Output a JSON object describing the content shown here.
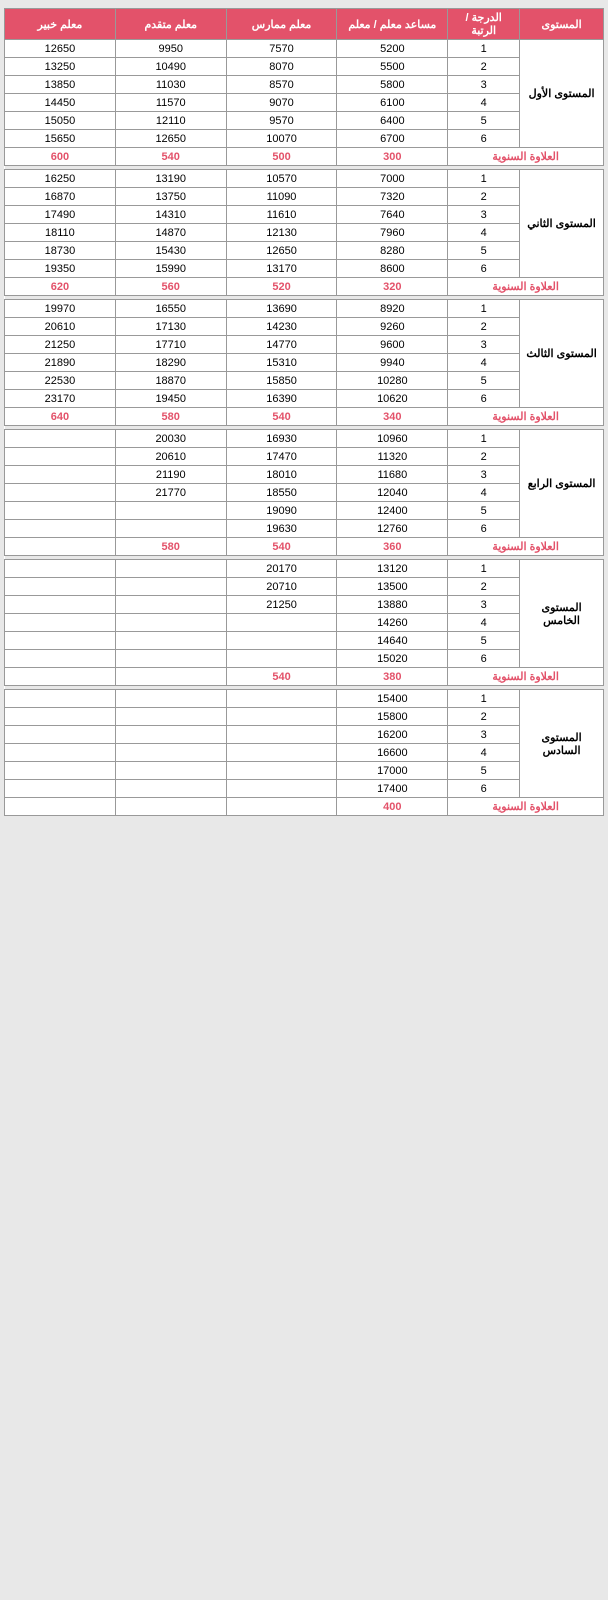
{
  "colors": {
    "header_bg": "#e3526a",
    "header_fg": "#ffffff",
    "accent": "#e3526a",
    "arrow": "#2fd39a",
    "border": "#999999",
    "bg": "#e8e8e8"
  },
  "headers": {
    "level": "المستوى",
    "grade": "الدرجة / الرتبة",
    "assistant": "مساعد معلم / معلم",
    "practitioner": "معلم ممارس",
    "advanced": "معلم متقدم",
    "expert": "معلم خبير"
  },
  "allowance_label": "العلاوة السنوية",
  "levels": [
    {
      "name": "المستوى الأول",
      "rows": [
        {
          "g": "1",
          "a": "5200",
          "p": "7570",
          "v": "9950",
          "x": "12650"
        },
        {
          "g": "2",
          "a": "5500",
          "p": "8070",
          "v": "10490",
          "x": "13250"
        },
        {
          "g": "3",
          "a": "5800",
          "p": "8570",
          "v": "11030",
          "x": "13850"
        },
        {
          "g": "4",
          "a": "6100",
          "p": "9070",
          "v": "11570",
          "x": "14450"
        },
        {
          "g": "5",
          "a": "6400",
          "p": "9570",
          "v": "12110",
          "x": "15050"
        },
        {
          "g": "6",
          "a": "6700",
          "p": "10070",
          "v": "12650",
          "x": "15650"
        }
      ],
      "allowance": {
        "a": "300",
        "p": "500",
        "v": "540",
        "x": "600"
      }
    },
    {
      "name": "المستوى الثاني",
      "rows": [
        {
          "g": "1",
          "a": "7000",
          "p": "10570",
          "v": "13190",
          "x": "16250"
        },
        {
          "g": "2",
          "a": "7320",
          "p": "11090",
          "v": "13750",
          "x": "16870"
        },
        {
          "g": "3",
          "a": "7640",
          "p": "11610",
          "v": "14310",
          "x": "17490"
        },
        {
          "g": "4",
          "a": "7960",
          "p": "12130",
          "v": "14870",
          "x": "18110"
        },
        {
          "g": "5",
          "a": "8280",
          "p": "12650",
          "v": "15430",
          "x": "18730"
        },
        {
          "g": "6",
          "a": "8600",
          "p": "13170",
          "v": "15990",
          "x": "19350"
        }
      ],
      "allowance": {
        "a": "320",
        "p": "520",
        "v": "560",
        "x": "620"
      }
    },
    {
      "name": "المستوى الثالث",
      "rows": [
        {
          "g": "1",
          "a": "8920",
          "p": "13690",
          "v": "16550",
          "x": "19970"
        },
        {
          "g": "2",
          "a": "9260",
          "p": "14230",
          "v": "17130",
          "x": "20610"
        },
        {
          "g": "3",
          "a": "9600",
          "p": "14770",
          "v": "17710",
          "x": "21250"
        },
        {
          "g": "4",
          "a": "9940",
          "p": "15310",
          "v": "18290",
          "x": "21890"
        },
        {
          "g": "5",
          "a": "10280",
          "p": "15850",
          "v": "18870",
          "x": "22530"
        },
        {
          "g": "6",
          "a": "10620",
          "p": "16390",
          "v": "19450",
          "x": "23170"
        }
      ],
      "allowance": {
        "a": "340",
        "p": "540",
        "v": "580",
        "x": "640"
      }
    },
    {
      "name": "المستوى الرابع",
      "rows": [
        {
          "g": "1",
          "a": "10960",
          "p": "16930",
          "v": "20030",
          "x": ""
        },
        {
          "g": "2",
          "a": "11320",
          "p": "17470",
          "v": "20610",
          "x": ""
        },
        {
          "g": "3",
          "a": "11680",
          "p": "18010",
          "v": "21190",
          "x": ""
        },
        {
          "g": "4",
          "a": "12040",
          "p": "18550",
          "v": "21770",
          "x": ""
        },
        {
          "g": "5",
          "a": "12400",
          "p": "19090",
          "v": "",
          "x": ""
        },
        {
          "g": "6",
          "a": "12760",
          "p": "19630",
          "v": "",
          "x": ""
        }
      ],
      "allowance": {
        "a": "360",
        "p": "540",
        "v": "580",
        "x": ""
      }
    },
    {
      "name": "المستوى الخامس",
      "rows": [
        {
          "g": "1",
          "a": "13120",
          "p": "20170",
          "v": "",
          "x": ""
        },
        {
          "g": "2",
          "a": "13500",
          "p": "20710",
          "v": "",
          "x": ""
        },
        {
          "g": "3",
          "a": "13880",
          "p": "21250",
          "v": "",
          "x": ""
        },
        {
          "g": "4",
          "a": "14260",
          "p": "",
          "v": "",
          "x": ""
        },
        {
          "g": "5",
          "a": "14640",
          "p": "",
          "v": "",
          "x": ""
        },
        {
          "g": "6",
          "a": "15020",
          "p": "",
          "v": "",
          "x": ""
        }
      ],
      "allowance": {
        "a": "380",
        "p": "540",
        "v": "",
        "x": ""
      }
    },
    {
      "name": "المستوى السادس",
      "rows": [
        {
          "g": "1",
          "a": "15400",
          "p": "",
          "v": "",
          "x": ""
        },
        {
          "g": "2",
          "a": "15800",
          "p": "",
          "v": "",
          "x": ""
        },
        {
          "g": "3",
          "a": "16200",
          "p": "",
          "v": "",
          "x": ""
        },
        {
          "g": "4",
          "a": "16600",
          "p": "",
          "v": "",
          "x": ""
        },
        {
          "g": "5",
          "a": "17000",
          "p": "",
          "v": "",
          "x": ""
        },
        {
          "g": "6",
          "a": "17400",
          "p": "",
          "v": "",
          "x": ""
        }
      ],
      "allowance": {
        "a": "400",
        "p": "",
        "v": "",
        "x": ""
      }
    }
  ]
}
